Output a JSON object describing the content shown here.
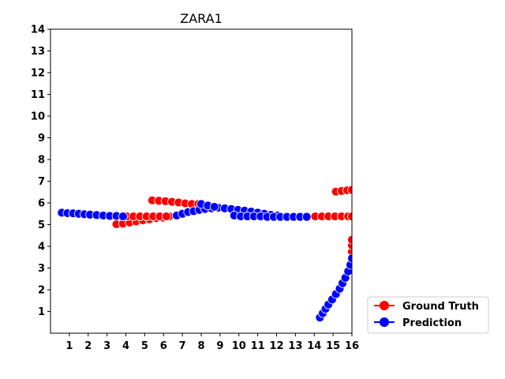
{
  "chart_data": {
    "type": "scatter",
    "title": "ZARA1",
    "xlabel": "",
    "ylabel": "",
    "xlim": [
      0,
      16
    ],
    "ylim": [
      0,
      14
    ],
    "xticks": [
      1,
      2,
      3,
      4,
      5,
      6,
      7,
      8,
      9,
      10,
      11,
      12,
      13,
      14,
      15,
      16
    ],
    "yticks": [
      1,
      2,
      3,
      4,
      5,
      6,
      7,
      8,
      9,
      10,
      11,
      12,
      13,
      14
    ],
    "grid": false,
    "legend_position": "bottom-right, outside plot",
    "series": [
      {
        "name": "Ground Truth",
        "color": "#ff0000",
        "marker_edge": "#ffffff",
        "tracks": [
          [
            [
              3.5,
              5.02
            ],
            [
              3.85,
              5.05
            ],
            [
              4.2,
              5.1
            ],
            [
              4.55,
              5.15
            ],
            [
              4.9,
              5.2
            ],
            [
              5.25,
              5.25
            ],
            [
              5.6,
              5.3
            ],
            [
              5.95,
              5.32
            ],
            [
              6.3,
              5.38
            ]
          ],
          [
            [
              5.4,
              6.12
            ],
            [
              5.75,
              6.1
            ],
            [
              6.1,
              6.08
            ],
            [
              6.45,
              6.05
            ],
            [
              6.8,
              6.02
            ],
            [
              7.15,
              5.98
            ],
            [
              7.5,
              5.95
            ],
            [
              7.85,
              5.95
            ]
          ],
          [
            [
              4.05,
              5.38
            ],
            [
              4.4,
              5.38
            ],
            [
              4.75,
              5.38
            ],
            [
              5.1,
              5.38
            ],
            [
              5.45,
              5.38
            ],
            [
              5.8,
              5.38
            ],
            [
              6.15,
              5.38
            ]
          ],
          [
            [
              14.05,
              5.38
            ],
            [
              14.4,
              5.38
            ],
            [
              14.75,
              5.38
            ],
            [
              15.1,
              5.38
            ],
            [
              15.45,
              5.38
            ],
            [
              15.8,
              5.38
            ],
            [
              16.0,
              5.38
            ]
          ],
          [
            [
              15.15,
              6.52
            ],
            [
              15.45,
              6.55
            ],
            [
              15.75,
              6.58
            ],
            [
              16.0,
              6.6
            ]
          ],
          [
            [
              16.0,
              3.45
            ],
            [
              16.0,
              3.75
            ],
            [
              16.0,
              4.05
            ],
            [
              16.0,
              4.3
            ]
          ]
        ]
      },
      {
        "name": "Prediction",
        "color": "#0000ff",
        "marker_edge": "#ffffff",
        "tracks": [
          [
            [
              0.6,
              5.55
            ],
            [
              0.9,
              5.53
            ],
            [
              1.2,
              5.52
            ],
            [
              1.5,
              5.5
            ],
            [
              1.8,
              5.48
            ],
            [
              2.1,
              5.46
            ],
            [
              2.45,
              5.44
            ],
            [
              2.8,
              5.42
            ],
            [
              3.15,
              5.4
            ],
            [
              3.5,
              5.4
            ],
            [
              3.85,
              5.38
            ]
          ],
          [
            [
              6.7,
              5.42
            ],
            [
              7.0,
              5.5
            ],
            [
              7.3,
              5.58
            ],
            [
              7.6,
              5.62
            ],
            [
              7.9,
              5.68
            ],
            [
              8.2,
              5.72
            ],
            [
              8.55,
              5.75
            ],
            [
              8.9,
              5.78
            ],
            [
              9.25,
              5.75
            ],
            [
              9.6,
              5.72
            ],
            [
              9.95,
              5.68
            ],
            [
              10.3,
              5.64
            ],
            [
              10.65,
              5.6
            ],
            [
              11.0,
              5.55
            ],
            [
              11.35,
              5.5
            ],
            [
              11.7,
              5.45
            ],
            [
              12.05,
              5.42
            ]
          ],
          [
            [
              8.0,
              5.95
            ],
            [
              8.35,
              5.88
            ],
            [
              8.7,
              5.82
            ]
          ],
          [
            [
              9.75,
              5.42
            ],
            [
              10.1,
              5.38
            ],
            [
              10.45,
              5.38
            ],
            [
              10.8,
              5.38
            ],
            [
              11.15,
              5.38
            ],
            [
              11.5,
              5.36
            ],
            [
              11.85,
              5.36
            ],
            [
              12.2,
              5.36
            ],
            [
              12.55,
              5.36
            ],
            [
              12.9,
              5.36
            ],
            [
              13.25,
              5.36
            ],
            [
              13.6,
              5.36
            ]
          ],
          [
            [
              14.3,
              0.72
            ],
            [
              14.45,
              0.92
            ],
            [
              14.6,
              1.12
            ],
            [
              14.75,
              1.32
            ],
            [
              14.95,
              1.55
            ],
            [
              15.15,
              1.8
            ],
            [
              15.35,
              2.05
            ],
            [
              15.5,
              2.3
            ],
            [
              15.65,
              2.55
            ],
            [
              15.8,
              2.85
            ],
            [
              15.92,
              3.15
            ],
            [
              16.0,
              3.45
            ]
          ]
        ]
      }
    ]
  }
}
